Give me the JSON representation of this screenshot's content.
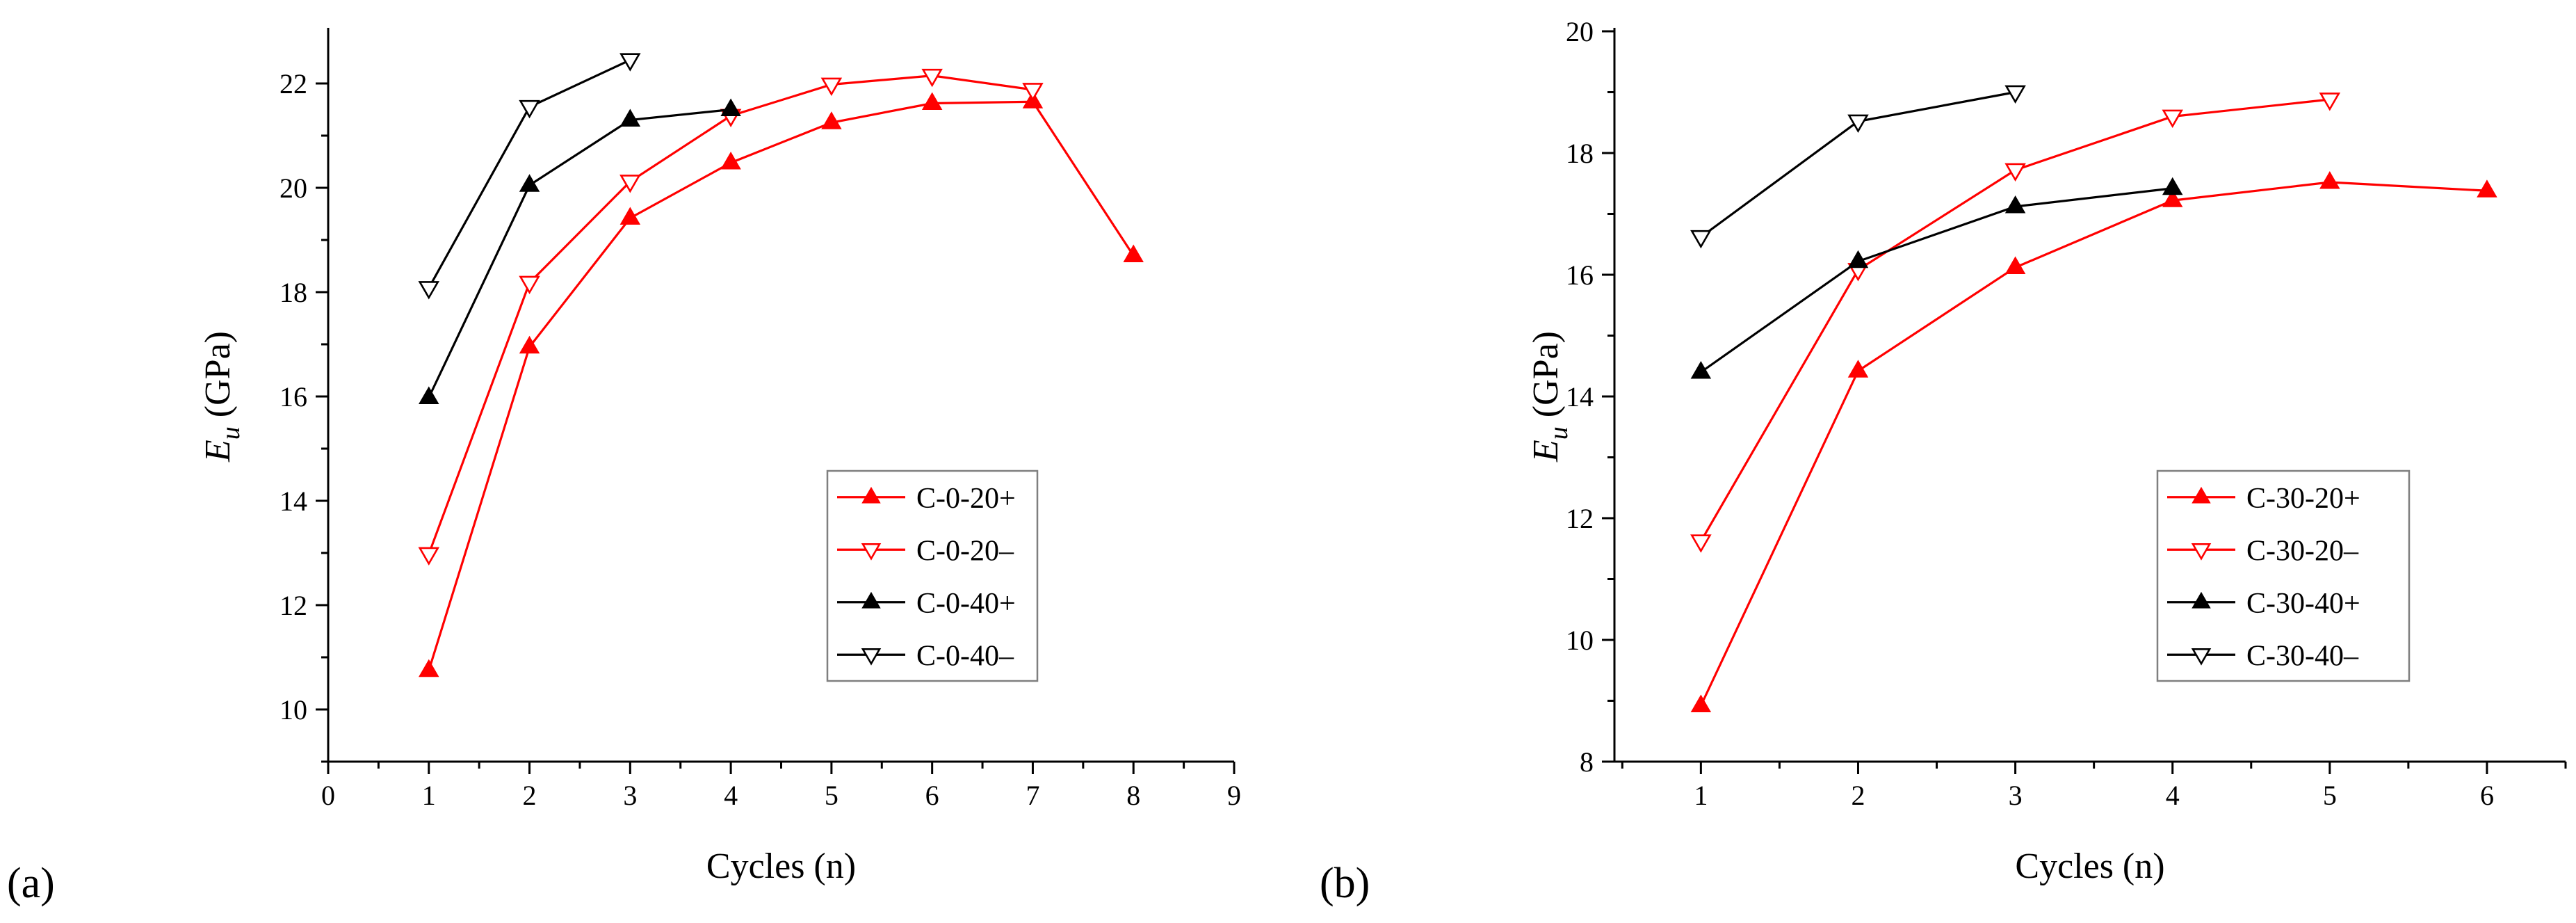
{
  "panels": [
    {
      "label": "(a)",
      "chart_data": {
        "type": "line",
        "xlabel": "Cycles (n)",
        "ylabel_main": "E",
        "ylabel_sub": "u",
        "ylabel_rest": " (GPa)",
        "xlim": [
          0,
          9
        ],
        "ylim": [
          9,
          23
        ],
        "xticks": [
          0,
          1,
          2,
          3,
          4,
          5,
          6,
          7,
          8,
          9
        ],
        "yticks": [
          10,
          12,
          14,
          16,
          18,
          20,
          22
        ],
        "legend_position": "lower-right",
        "series": [
          {
            "name": "C-0-20+",
            "color": "#ff0000",
            "marker": "triangle-up-filled",
            "x": [
              1,
              2,
              3,
              4,
              5,
              6,
              7,
              8
            ],
            "y": [
              10.75,
              16.95,
              19.42,
              20.48,
              21.25,
              21.62,
              21.65,
              18.7
            ]
          },
          {
            "name": "C-0-20–",
            "color": "#ff0000",
            "marker": "triangle-down-open",
            "x": [
              1,
              2,
              3,
              4,
              5,
              6,
              7
            ],
            "y": [
              12.98,
              18.18,
              20.12,
              21.38,
              21.98,
              22.15,
              21.88
            ]
          },
          {
            "name": "C-0-40+",
            "color": "#000000",
            "marker": "triangle-up-filled",
            "x": [
              1,
              2,
              3,
              4
            ],
            "y": [
              15.98,
              20.05,
              21.3,
              21.5
            ]
          },
          {
            "name": "C-0-40–",
            "color": "#000000",
            "marker": "triangle-down-open",
            "x": [
              1,
              2,
              3
            ],
            "y": [
              18.08,
              21.55,
              22.45
            ]
          }
        ]
      }
    },
    {
      "label": "(b)",
      "chart_data": {
        "type": "line",
        "xlabel": "Cycles (n)",
        "ylabel_main": "E",
        "ylabel_sub": "u",
        "ylabel_rest": " (GPa)",
        "xlim": [
          0.45,
          6.5
        ],
        "ylim": [
          8,
          20
        ],
        "xticks": [
          1,
          2,
          3,
          4,
          5,
          6
        ],
        "yticks": [
          8,
          10,
          12,
          14,
          16,
          18,
          20
        ],
        "legend_position": "lower-right",
        "series": [
          {
            "name": "C-30-20+",
            "color": "#ff0000",
            "marker": "triangle-up-filled",
            "x": [
              1,
              2,
              3,
              4,
              5,
              6
            ],
            "y": [
              8.92,
              14.42,
              16.12,
              17.22,
              17.52,
              17.38
            ]
          },
          {
            "name": "C-30-20–",
            "color": "#ff0000",
            "marker": "triangle-down-open",
            "x": [
              1,
              2,
              3,
              4,
              5
            ],
            "y": [
              11.62,
              16.08,
              17.72,
              18.6,
              18.88
            ]
          },
          {
            "name": "C-30-40+",
            "color": "#000000",
            "marker": "triangle-up-filled",
            "x": [
              1,
              2,
              3,
              4
            ],
            "y": [
              14.4,
              16.22,
              17.12,
              17.42
            ]
          },
          {
            "name": "C-30-40–",
            "color": "#000000",
            "marker": "triangle-down-open",
            "x": [
              1,
              2,
              3
            ],
            "y": [
              16.62,
              18.52,
              19.0
            ]
          }
        ]
      }
    }
  ]
}
